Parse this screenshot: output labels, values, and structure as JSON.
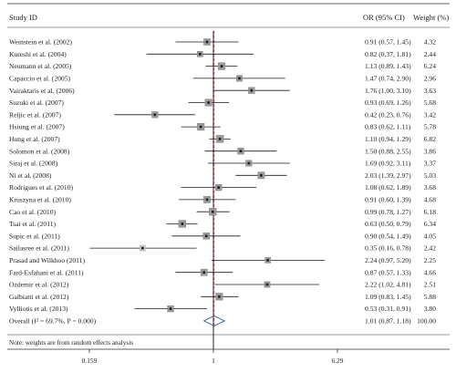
{
  "chart_data": {
    "type": "forest",
    "header": {
      "study": "Study ID",
      "or_ci": "OR (95% CI)",
      "weight": "Weight (%)"
    },
    "x_scale": "log",
    "x_ticks": [
      {
        "value": 0.159,
        "label": "0.159"
      },
      {
        "value": 1,
        "label": "1"
      },
      {
        "value": 6.29,
        "label": "6.29"
      }
    ],
    "xlim": [
      0.159,
      6.29
    ],
    "null_line": 1,
    "studies": [
      {
        "name": "Weinstein et al. (2002)",
        "or": 0.91,
        "lo": 0.57,
        "hi": 1.45,
        "text": "0.91 (0.57, 1.45)",
        "weight": "4.32"
      },
      {
        "name": "Kureshi et al. (2004)",
        "or": 0.82,
        "lo": 0.37,
        "hi": 1.81,
        "text": "0.82 (0.37, 1.81)",
        "weight": "2.44"
      },
      {
        "name": "Neumann et al. (2005)",
        "or": 1.13,
        "lo": 0.89,
        "hi": 1.43,
        "text": "1.13 (0.89, 1.43)",
        "weight": "6.24"
      },
      {
        "name": "Capaccio et al. (2005)",
        "or": 1.47,
        "lo": 0.74,
        "hi": 2.9,
        "text": "1.47 (0.74, 2.90)",
        "weight": "2.96"
      },
      {
        "name": "Vairaktaris et al. (2006)",
        "or": 1.76,
        "lo": 1.0,
        "hi": 3.1,
        "text": "1.76 (1.00, 3.10)",
        "weight": "3.63"
      },
      {
        "name": "Suzuki et al. (2007)",
        "or": 0.93,
        "lo": 0.69,
        "hi": 1.26,
        "text": "0.93 (0.69, 1.26)",
        "weight": "5.68"
      },
      {
        "name": "Reljic et al. (2007)",
        "or": 0.42,
        "lo": 0.23,
        "hi": 0.76,
        "text": "0.42 (0.23, 0.76)",
        "weight": "3.42"
      },
      {
        "name": "Hsiung et al. (2007)",
        "or": 0.83,
        "lo": 0.62,
        "hi": 1.11,
        "text": "0.83 (0.62, 1.11)",
        "weight": "5.78"
      },
      {
        "name": "Hung et al. (2007)",
        "or": 1.1,
        "lo": 0.94,
        "hi": 1.29,
        "text": "1.10 (0.94, 1.29)",
        "weight": "6.82"
      },
      {
        "name": "Solomon et al. (2008)",
        "or": 1.5,
        "lo": 0.88,
        "hi": 2.55,
        "text": "1.50 (0.88, 2.55)",
        "weight": "3.86"
      },
      {
        "name": "Siraj et al. (2008)",
        "or": 1.69,
        "lo": 0.92,
        "hi": 3.11,
        "text": "1.69 (0.92, 3.11)",
        "weight": "3.37"
      },
      {
        "name": "Ni et al. (2008)",
        "or": 2.03,
        "lo": 1.39,
        "hi": 2.97,
        "text": "2.03 (1.39, 2.97)",
        "weight": "5.03"
      },
      {
        "name": "Rodrigues et al. (2010)",
        "or": 1.08,
        "lo": 0.62,
        "hi": 1.89,
        "text": "1.08 (0.62, 1.89)",
        "weight": "3.68"
      },
      {
        "name": "Kruszyna et al. (2010)",
        "or": 0.91,
        "lo": 0.6,
        "hi": 1.39,
        "text": "0.91 (0.60, 1.39)",
        "weight": "4.68"
      },
      {
        "name": "Cao et al. (2010)",
        "or": 0.99,
        "lo": 0.78,
        "hi": 1.27,
        "text": "0.99 (0.78, 1.27)",
        "weight": "6.18"
      },
      {
        "name": "Tsai et al. (2011)",
        "or": 0.63,
        "lo": 0.5,
        "hi": 0.79,
        "text": "0.63 (0.50, 0.79)",
        "weight": "6.34"
      },
      {
        "name": "Supic et al. (2011)",
        "or": 0.9,
        "lo": 0.54,
        "hi": 1.49,
        "text": "0.90 (0.54, 1.49)",
        "weight": "4.05"
      },
      {
        "name": "Sailasree et al. (2011)",
        "or": 0.35,
        "lo": 0.16,
        "hi": 0.78,
        "text": "0.35 (0.16, 0.78)",
        "weight": "2.42",
        "grey": true
      },
      {
        "name": "Prasad and Wilkhoo (2011)",
        "or": 2.24,
        "lo": 0.97,
        "hi": 5.2,
        "text": "2.24 (0.97, 5.20)",
        "weight": "2.25"
      },
      {
        "name": "Fard-Esfahani et al. (2011)",
        "or": 0.87,
        "lo": 0.57,
        "hi": 1.33,
        "text": "0.87 (0.57, 1.33)",
        "weight": "4.66"
      },
      {
        "name": "Ozdemir et al. (2012)",
        "or": 2.22,
        "lo": 1.02,
        "hi": 4.81,
        "text": "2.22 (1.02, 4.81)",
        "weight": "2.51"
      },
      {
        "name": "Galbiatti et al. (2012)",
        "or": 1.09,
        "lo": 0.83,
        "hi": 1.45,
        "text": "1.09 (0.83, 1.45)",
        "weight": "5.88"
      },
      {
        "name": "Vylliotis et al. (2013)",
        "or": 0.53,
        "lo": 0.31,
        "hi": 0.91,
        "text": "0.53 (0.31, 0.91)",
        "weight": "3.80"
      }
    ],
    "overall": {
      "label": "Overall (I² = 69.7%, P = 0.000)",
      "or": 1.01,
      "lo": 0.87,
      "hi": 1.18,
      "text": "1.01 (0.87, 1.18)",
      "weight": "100.00"
    },
    "note": "Note: weights are from random effects analysis",
    "colors": {
      "ink": "#1a1a1a",
      "box": "#9a9a9a",
      "box_grey": "#c8c8c8",
      "null_line": "#222222",
      "overall_line": "#c05050",
      "diamond": "#2b4fa0"
    }
  }
}
